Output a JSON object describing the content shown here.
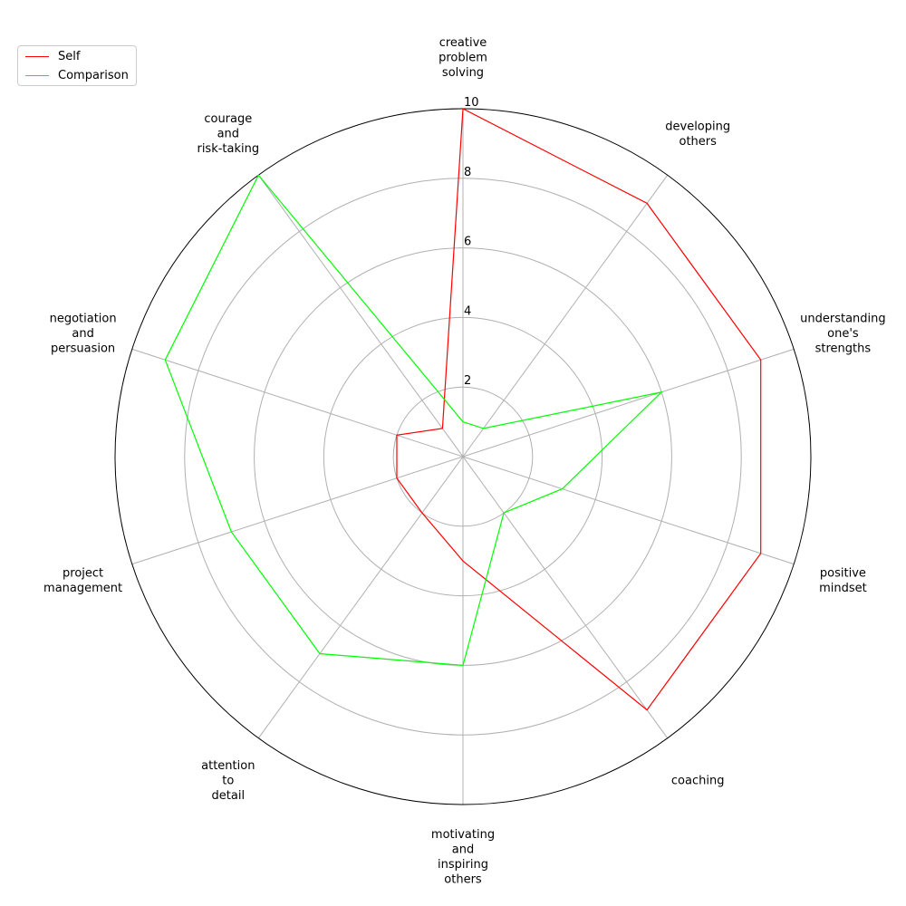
{
  "chart_data": {
    "type": "radar",
    "title": "",
    "axes": [
      "creative\nproblem\nsolving",
      "developing\nothers",
      "understanding\none's\nstrengths",
      "positive\nmindset",
      "coaching",
      "motivating\nand\ninspiring\nothers",
      "attention\nto\ndetail",
      "project\nmanagement",
      "negotiation\nand\npersuasion",
      "courage\nand\nrisk-taking"
    ],
    "rlim": [
      0,
      10
    ],
    "radial_ticks": [
      2,
      4,
      6,
      8,
      10
    ],
    "grid": true,
    "legend_position": "top-left",
    "series": [
      {
        "name": "Self",
        "color": "#ff0000",
        "values": [
          10,
          9,
          9,
          9,
          9,
          3,
          2,
          2,
          2,
          1
        ]
      },
      {
        "name": "Comparison",
        "color": "#00ff00",
        "values": [
          1,
          1,
          6,
          3,
          2,
          6,
          7,
          7,
          9,
          10
        ]
      }
    ]
  }
}
